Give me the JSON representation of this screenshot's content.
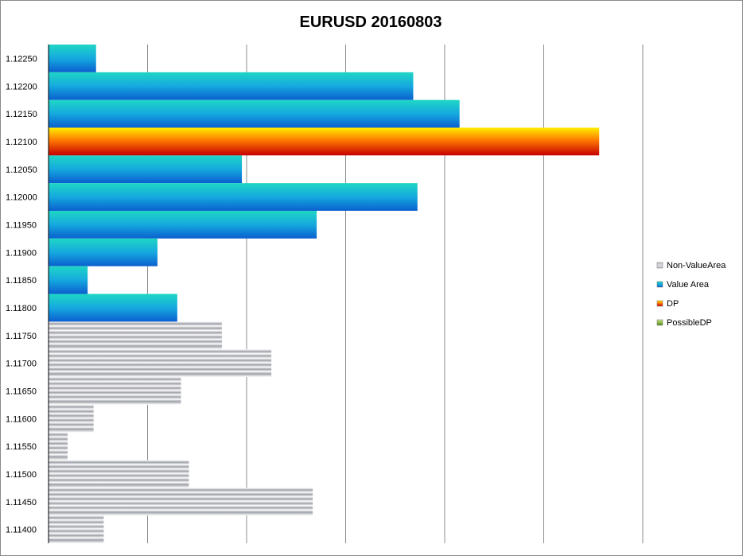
{
  "chart_data": {
    "type": "bar",
    "orientation": "horizontal",
    "title": "EURUSD 20160803",
    "xlabel": "",
    "ylabel": "",
    "xlim": [
      0,
      240
    ],
    "grid": true,
    "legend_position": "right",
    "categories": [
      "1.12250",
      "1.12200",
      "1.12150",
      "1.12100",
      "1.12050",
      "1.12000",
      "1.11950",
      "1.11900",
      "1.11850",
      "1.11800",
      "1.11750",
      "1.11700",
      "1.11650",
      "1.11600",
      "1.11550",
      "1.11500",
      "1.11450",
      "1.11400"
    ],
    "series": [
      {
        "name": "Non-ValueArea",
        "key": "nva",
        "values": [
          null,
          null,
          null,
          null,
          null,
          null,
          null,
          null,
          null,
          null,
          70,
          90,
          53.5,
          18.2,
          7.7,
          56.7,
          106.7,
          22.3
        ]
      },
      {
        "name": "Value Area",
        "key": "va",
        "values": [
          19.2,
          147.3,
          166,
          null,
          78.1,
          149,
          108.3,
          44,
          15.8,
          52,
          null,
          null,
          null,
          null,
          null,
          null,
          null,
          null
        ]
      },
      {
        "name": "DP",
        "key": "dp",
        "values": [
          null,
          null,
          null,
          222.4,
          null,
          null,
          null,
          null,
          null,
          null,
          null,
          null,
          null,
          null,
          null,
          null,
          null,
          null
        ]
      },
      {
        "name": "PossibleDP",
        "key": "pdp",
        "values": [
          null,
          null,
          null,
          null,
          null,
          null,
          null,
          null,
          null,
          null,
          null,
          null,
          null,
          null,
          null,
          null,
          null,
          null
        ]
      }
    ]
  }
}
